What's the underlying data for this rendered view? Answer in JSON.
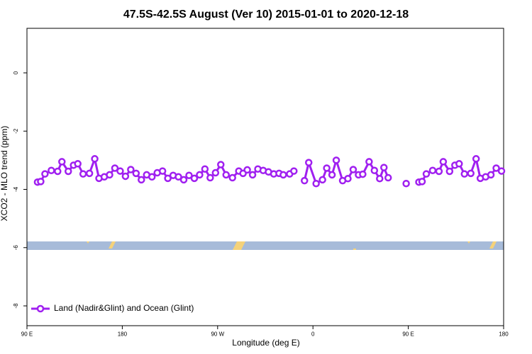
{
  "chart_data": {
    "type": "line",
    "title": "47.5S-42.5S August (Ver 10)   2015-01-01 to 2020-12-18",
    "x_label": "Longitude (deg E)",
    "y_label": "XCO2 - MLO trend (ppm)",
    "xlim": [
      90,
      540
    ],
    "xticks": [
      {
        "value": 90,
        "label": "90 E"
      },
      180,
      {
        "value": 270,
        "label": "90 W"
      },
      {
        "value": 360,
        "label": "0"
      },
      {
        "value": 450,
        "label": "90 E"
      },
      {
        "value": 540,
        "label": "180"
      }
    ],
    "ylim": [
      -8.68,
      1.53
    ],
    "yticks": [
      -8,
      -6,
      -4,
      -2,
      0
    ],
    "legend": "bottom-left",
    "series": [
      {
        "name": "Land (Nadir&Glint) and Ocean (Glint)",
        "color": "#a020f0",
        "x": [
          100,
          103,
          107,
          113,
          119,
          123,
          129,
          134,
          138,
          143,
          149,
          154,
          158,
          163,
          168,
          173,
          178,
          183,
          188,
          193,
          198,
          203,
          208,
          213,
          218,
          223,
          228,
          233,
          238,
          243,
          248,
          253,
          258,
          263,
          268,
          273,
          278,
          284,
          290,
          294,
          298,
          303,
          308,
          313,
          318,
          323,
          328,
          332,
          338,
          342,
          347,
          352,
          356,
          363,
          369,
          373,
          378,
          382,
          388,
          393,
          398,
          403,
          407,
          413,
          418,
          423,
          427,
          431,
          440,
          448,
          453,
          460,
          463,
          467,
          473,
          479,
          483,
          489,
          494,
          498,
          503,
          509,
          514,
          518,
          523,
          528,
          533,
          538
        ],
        "values": [
          -3.75,
          -3.73,
          -3.47,
          -3.35,
          -3.38,
          -3.05,
          -3.38,
          -3.17,
          -3.12,
          -3.47,
          -3.45,
          -2.95,
          -3.62,
          -3.57,
          -3.5,
          -3.27,
          -3.37,
          -3.55,
          -3.32,
          -3.45,
          -3.67,
          -3.5,
          -3.57,
          -3.43,
          -3.37,
          -3.62,
          -3.52,
          -3.57,
          -3.67,
          -3.52,
          -3.62,
          -3.5,
          -3.3,
          -3.6,
          -3.43,
          -3.15,
          -3.5,
          -3.6,
          -3.37,
          -3.45,
          -3.33,
          -3.5,
          -3.3,
          -3.35,
          -3.4,
          -3.47,
          -3.45,
          -3.5,
          -3.47,
          -3.37,
          null,
          -3.7,
          -3.08,
          -3.8,
          -3.67,
          -3.27,
          -3.5,
          -3.0,
          -3.7,
          -3.63,
          -3.32,
          -3.5,
          -3.48,
          -3.05,
          -3.35,
          -3.63,
          -3.25,
          -3.6,
          null,
          -3.8,
          null,
          -3.75,
          -3.73,
          -3.47,
          -3.35,
          -3.38,
          -3.05,
          -3.38,
          -3.17,
          -3.12,
          -3.47,
          -3.45,
          -2.95,
          -3.62,
          -3.57,
          -3.5,
          -3.27,
          -3.37
        ]
      }
    ]
  }
}
